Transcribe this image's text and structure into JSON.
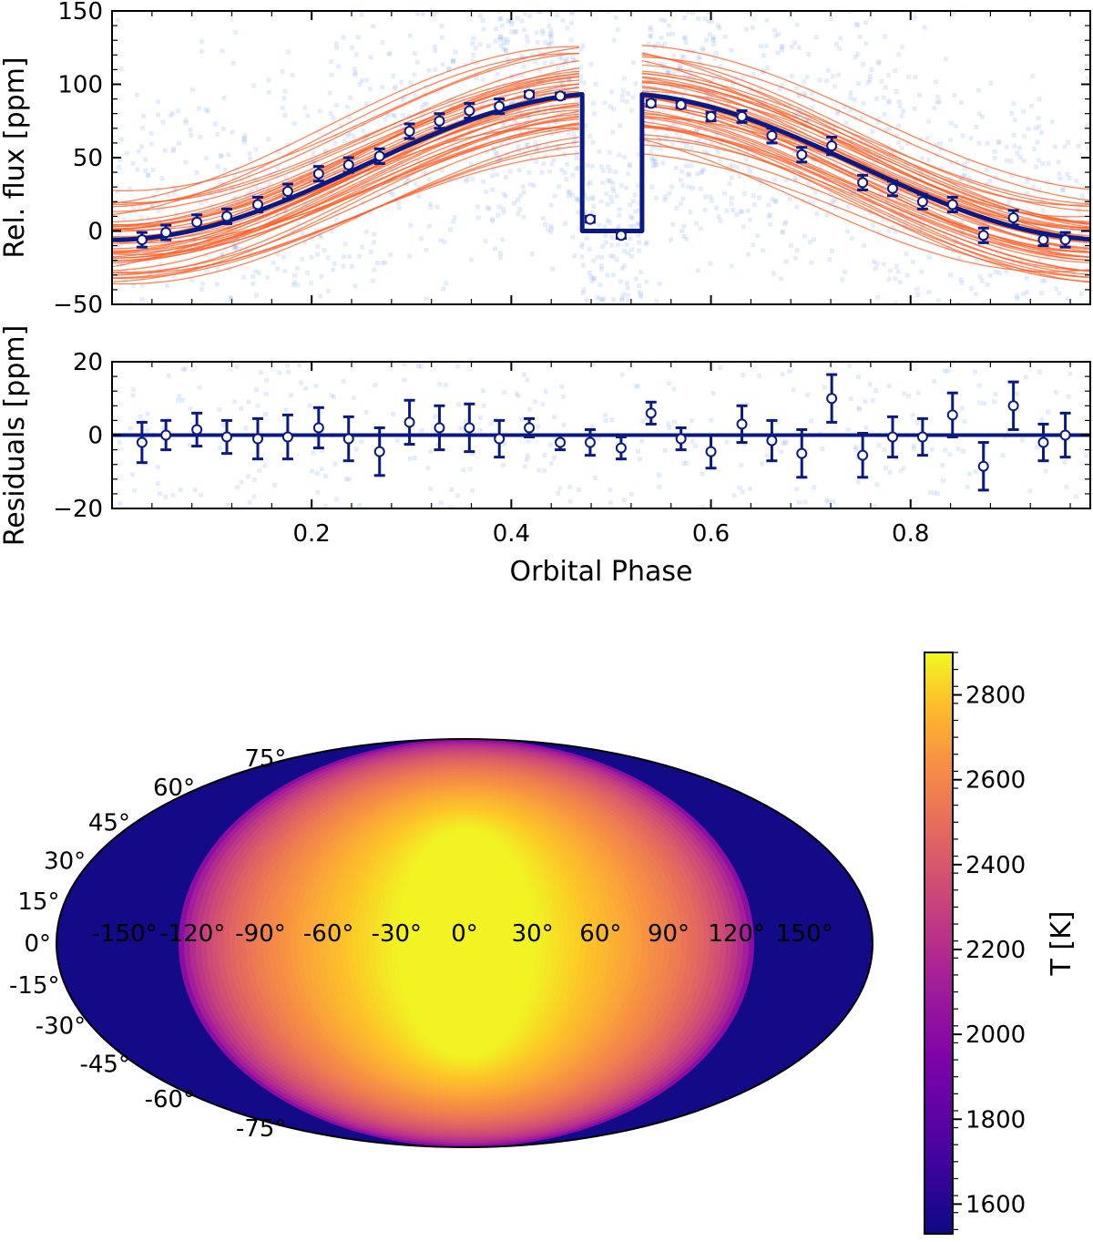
{
  "chart_data": [
    {
      "type": "line",
      "panel": "phase-curve",
      "title": "",
      "xlabel": "",
      "ylabel": "Rel. flux [ppm]",
      "xlim": [
        0.0,
        0.98
      ],
      "ylim": [
        -50,
        150
      ],
      "yticks": [
        -50,
        0,
        50,
        100,
        150
      ],
      "ytick_labels": [
        "−50",
        "0",
        "50",
        "100",
        "150"
      ],
      "xticks": [
        0.2,
        0.4,
        0.6,
        0.8
      ],
      "series": [
        {
          "name": "best-fit model",
          "color": "#0b1a82",
          "baseline": -6,
          "amplitude": 100,
          "eclipse_start": 0.471,
          "eclipse_end": 0.531,
          "eclipse_level": 0
        },
        {
          "name": "posterior samples",
          "color": "#ff5a1f",
          "count": 45
        },
        {
          "name": "binned data",
          "color": "#0b1a82",
          "x": [
            0.03,
            0.054,
            0.085,
            0.115,
            0.146,
            0.176,
            0.207,
            0.237,
            0.268,
            0.298,
            0.328,
            0.358,
            0.388,
            0.418,
            0.449,
            0.479,
            0.51,
            0.54,
            0.57,
            0.6,
            0.631,
            0.661,
            0.691,
            0.721,
            0.752,
            0.782,
            0.812,
            0.842,
            0.873,
            0.903,
            0.933,
            0.955
          ],
          "y": [
            -6,
            -1,
            6,
            10,
            18,
            27,
            39,
            45,
            51,
            68,
            75,
            82,
            85,
            93,
            92,
            8,
            -3,
            87,
            86,
            78,
            78,
            65,
            52,
            58,
            33,
            29,
            20,
            18,
            -3,
            9,
            -6,
            -6
          ],
          "yerr": [
            5,
            5,
            5,
            5,
            5,
            5,
            5,
            5,
            5,
            5,
            5,
            5,
            5,
            2,
            2,
            2,
            2,
            2,
            2,
            3,
            4,
            5,
            5,
            6,
            5,
            5,
            5,
            5,
            5,
            5,
            4,
            5
          ]
        }
      ]
    },
    {
      "type": "scatter",
      "panel": "residuals",
      "xlabel": "Orbital Phase",
      "ylabel": "Residuals [ppm]",
      "xlim": [
        0.0,
        0.98
      ],
      "ylim": [
        -20,
        20
      ],
      "yticks": [
        -20,
        0,
        20
      ],
      "ytick_labels": [
        "−20",
        "0",
        "20"
      ],
      "xticks": [
        0.2,
        0.4,
        0.6,
        0.8
      ],
      "xtick_labels": [
        "0.2",
        "0.4",
        "0.6",
        "0.8"
      ],
      "series": [
        {
          "name": "binned residuals",
          "color": "#0b1a82",
          "x": [
            0.03,
            0.054,
            0.085,
            0.115,
            0.146,
            0.176,
            0.207,
            0.237,
            0.268,
            0.298,
            0.328,
            0.358,
            0.388,
            0.418,
            0.449,
            0.479,
            0.51,
            0.54,
            0.57,
            0.6,
            0.631,
            0.661,
            0.691,
            0.721,
            0.752,
            0.782,
            0.812,
            0.842,
            0.873,
            0.903,
            0.933,
            0.955
          ],
          "y": [
            -2,
            0,
            1.5,
            -0.5,
            -1,
            -0.5,
            2,
            -1,
            -4.5,
            3.5,
            2,
            2,
            -1,
            2,
            -2,
            -2,
            -3.5,
            6,
            -1,
            -4.5,
            3,
            -1.5,
            -5,
            10,
            -5.5,
            -0.5,
            -0.5,
            5.5,
            -8.5,
            8,
            -2,
            0
          ],
          "yerr": [
            5.5,
            4,
            4.5,
            4.5,
            5.5,
            6,
            5.5,
            6,
            6.5,
            6,
            6,
            6.5,
            5,
            2.5,
            2,
            3.5,
            3,
            3,
            3,
            4.5,
            5,
            5.5,
            6.5,
            6.5,
            6,
            5.5,
            5,
            6,
            6.5,
            6.5,
            5,
            6
          ]
        }
      ]
    },
    {
      "type": "heatmap",
      "panel": "temperature-map",
      "projection": "mollweide",
      "colorbar_label": "T [K]",
      "colorbar_range": [
        1530,
        2900
      ],
      "colorbar_ticks": [
        1600,
        1800,
        2000,
        2200,
        2400,
        2600,
        2800
      ],
      "nightside_T": 1560,
      "substellar_T": 2900,
      "longitude_labels": [
        "-150°",
        "-120°",
        "-90°",
        "-60°",
        "-30°",
        "0°",
        "30°",
        "60°",
        "90°",
        "120°",
        "150°"
      ],
      "longitude_values": [
        -150,
        -120,
        -90,
        -60,
        -30,
        0,
        30,
        60,
        90,
        120,
        150
      ],
      "latitude_labels": [
        "75°",
        "60°",
        "45°",
        "30°",
        "15°",
        "0°",
        "-15°",
        "-30°",
        "-45°",
        "-60°",
        "-75°"
      ],
      "latitude_values": [
        75,
        60,
        45,
        30,
        15,
        0,
        -15,
        -30,
        -45,
        -60,
        -75
      ]
    }
  ]
}
